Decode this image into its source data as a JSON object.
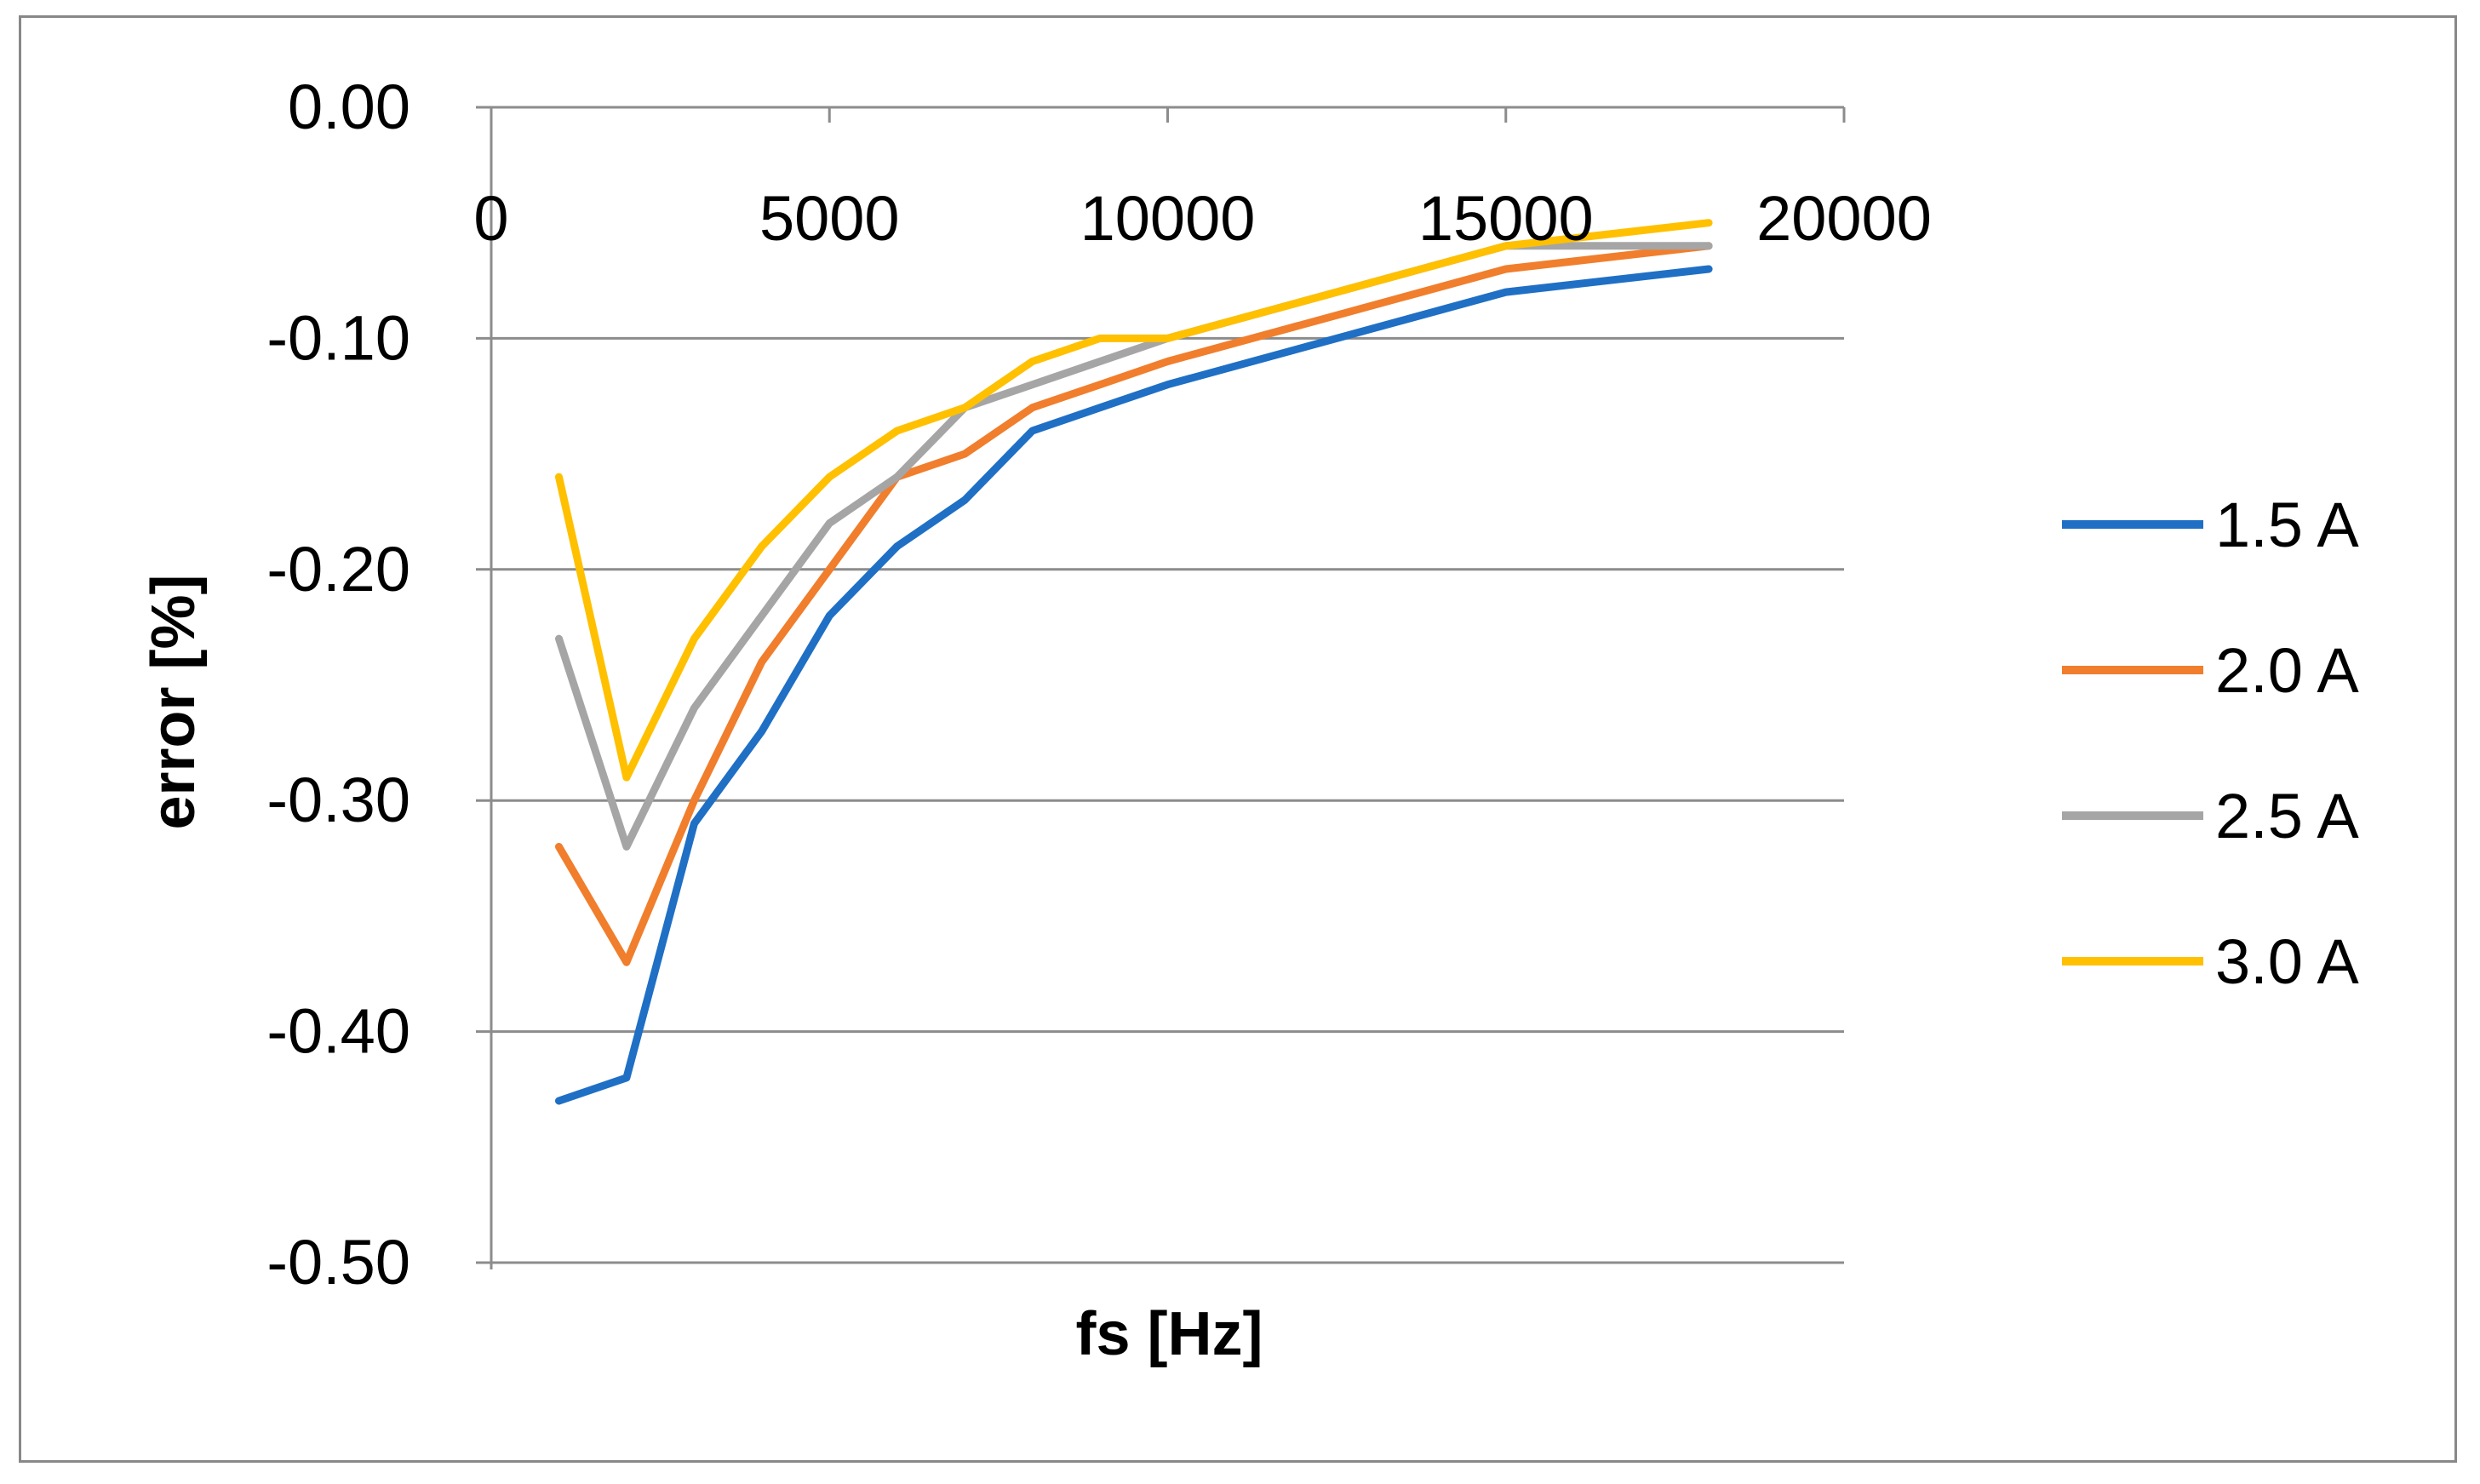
{
  "chart_data": {
    "type": "line",
    "title": "",
    "xlabel": "fs [Hz]",
    "ylabel": "error [%]",
    "xlim": [
      0,
      20000
    ],
    "ylim": [
      -0.5,
      0.0
    ],
    "x_ticks": [
      "0",
      "5000",
      "10000",
      "15000",
      "20000"
    ],
    "y_ticks": [
      "0.00",
      "-0.10",
      "-0.20",
      "-0.30",
      "-0.40",
      "-0.50"
    ],
    "x_axis_position": "top (crosses at 0.00)",
    "grid": "horizontal major gridlines",
    "legend_position": "right",
    "series": [
      {
        "name": "1.5 A",
        "color": "#1F6FC5",
        "points": [
          [
            1000,
            -0.43
          ],
          [
            2000,
            -0.42
          ],
          [
            3000,
            -0.31
          ],
          [
            4000,
            -0.27
          ],
          [
            5000,
            -0.22
          ],
          [
            6000,
            -0.19
          ],
          [
            7000,
            -0.17
          ],
          [
            8000,
            -0.14
          ],
          [
            9000,
            -0.13
          ],
          [
            10000,
            -0.12
          ],
          [
            15000,
            -0.08
          ],
          [
            18000,
            -0.07
          ]
        ]
      },
      {
        "name": "2.0 A",
        "color": "#F07E2C",
        "points": [
          [
            1000,
            -0.32
          ],
          [
            2000,
            -0.37
          ],
          [
            3000,
            -0.3
          ],
          [
            4000,
            -0.24
          ],
          [
            5000,
            -0.2
          ],
          [
            6000,
            -0.16
          ],
          [
            7000,
            -0.15
          ],
          [
            8000,
            -0.13
          ],
          [
            9000,
            -0.12
          ],
          [
            10000,
            -0.11
          ],
          [
            15000,
            -0.07
          ],
          [
            18000,
            -0.06
          ]
        ]
      },
      {
        "name": "2.5 A",
        "color": "#A5A5A5",
        "points": [
          [
            1000,
            -0.23
          ],
          [
            2000,
            -0.32
          ],
          [
            3000,
            -0.26
          ],
          [
            4000,
            -0.22
          ],
          [
            5000,
            -0.18
          ],
          [
            6000,
            -0.16
          ],
          [
            7000,
            -0.13
          ],
          [
            8000,
            -0.12
          ],
          [
            9000,
            -0.11
          ],
          [
            10000,
            -0.1
          ],
          [
            15000,
            -0.06
          ],
          [
            18000,
            -0.06
          ]
        ]
      },
      {
        "name": "3.0 A",
        "color": "#FFC000",
        "points": [
          [
            1000,
            -0.16
          ],
          [
            2000,
            -0.29
          ],
          [
            3000,
            -0.23
          ],
          [
            4000,
            -0.19
          ],
          [
            5000,
            -0.16
          ],
          [
            6000,
            -0.14
          ],
          [
            7000,
            -0.13
          ],
          [
            8000,
            -0.11
          ],
          [
            9000,
            -0.1
          ],
          [
            10000,
            -0.1
          ],
          [
            15000,
            -0.06
          ],
          [
            18000,
            -0.05
          ]
        ]
      }
    ]
  }
}
